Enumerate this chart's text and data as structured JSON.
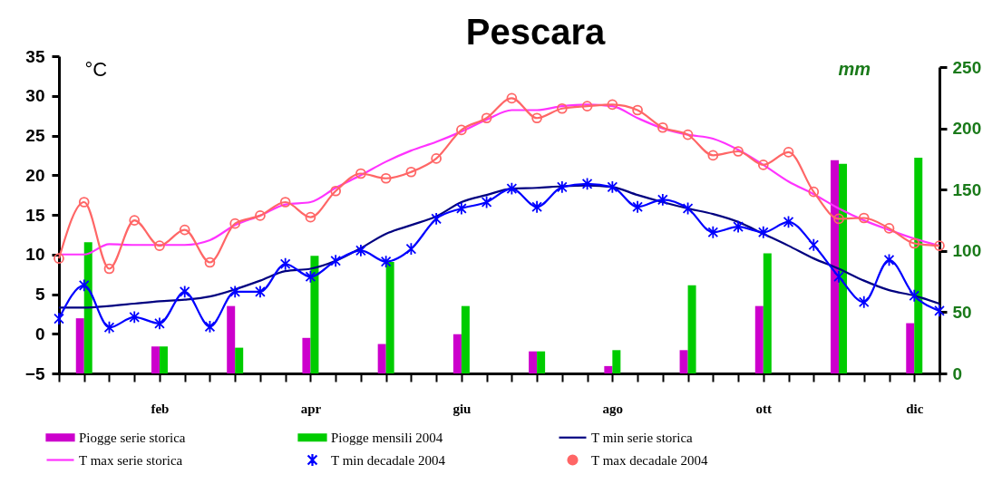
{
  "chart_data": {
    "type": "line",
    "title": "Pescara",
    "ylabel": "°C",
    "y2label": "mm",
    "categories": [
      null,
      null,
      null,
      null,
      "feb",
      null,
      null,
      null,
      null,
      null,
      "apr",
      null,
      null,
      null,
      null,
      null,
      "giu",
      null,
      null,
      null,
      null,
      null,
      "ago",
      null,
      null,
      null,
      null,
      null,
      "ott",
      null,
      null,
      null,
      null,
      null,
      "dic",
      null
    ],
    "ylim": [
      -5,
      35
    ],
    "yticks": [
      -5,
      0,
      5,
      10,
      15,
      20,
      25,
      30,
      35
    ],
    "y2lim": [
      0,
      250
    ],
    "y2ticks": [
      0,
      50,
      100,
      150,
      200,
      250
    ],
    "legend": "bottom",
    "series": [
      {
        "name": "Piogge serie storica",
        "type": "bar",
        "axis": "y2",
        "color": "#cc00cc",
        "values": [
          null,
          45,
          null,
          null,
          22,
          null,
          null,
          55,
          null,
          null,
          29,
          null,
          null,
          24,
          null,
          null,
          32,
          null,
          null,
          18,
          null,
          null,
          6,
          null,
          null,
          19,
          null,
          null,
          55,
          null,
          null,
          174,
          null,
          null,
          41,
          null
        ]
      },
      {
        "name": "Piogge mensili 2004",
        "type": "bar",
        "axis": "y2",
        "color": "#00cc00",
        "values": [
          null,
          107,
          null,
          null,
          22,
          null,
          null,
          21,
          null,
          null,
          96,
          null,
          null,
          91,
          null,
          null,
          55,
          null,
          null,
          18,
          null,
          null,
          19,
          null,
          null,
          72,
          null,
          null,
          98,
          null,
          null,
          171,
          null,
          null,
          176,
          null
        ]
      },
      {
        "name": "T min serie storica",
        "type": "line",
        "color": "#000080",
        "values": [
          3.3,
          3.3,
          3.5,
          3.8,
          4.1,
          4.3,
          4.7,
          5.6,
          6.7,
          7.9,
          8.2,
          9.2,
          10.8,
          12.6,
          13.7,
          14.8,
          16.6,
          17.5,
          18.3,
          18.4,
          18.6,
          18.7,
          18.5,
          17.5,
          16.6,
          15.8,
          15.1,
          14.1,
          12.6,
          11.1,
          9.5,
          8.2,
          6.7,
          5.5,
          4.8,
          3.8
        ]
      },
      {
        "name": "T max serie storica",
        "type": "line",
        "color": "#ff33ff",
        "values": [
          10,
          10,
          11.3,
          11.2,
          11.2,
          11.2,
          11.8,
          13.7,
          14.9,
          16.3,
          16.6,
          18.4,
          20.0,
          21.7,
          23.1,
          24.2,
          25.5,
          27.0,
          28.2,
          28.2,
          28.7,
          28.9,
          28.7,
          27.2,
          25.9,
          25.1,
          24.6,
          23.2,
          21.3,
          19.2,
          17.6,
          15.8,
          14.3,
          13.1,
          12.0,
          11.1
        ]
      },
      {
        "name": "T min decadale 2004",
        "type": "line",
        "marker": "cross",
        "color": "#0000ff",
        "values": [
          1.9,
          6.1,
          0.8,
          2.1,
          1.3,
          5.3,
          0.9,
          5.3,
          5.3,
          8.8,
          7.2,
          9.2,
          10.5,
          9.1,
          10.7,
          14.5,
          15.8,
          16.6,
          18.3,
          16.0,
          18.5,
          18.9,
          18.5,
          16.0,
          16.9,
          15.8,
          12.8,
          13.5,
          12.8,
          14.1,
          11.2,
          7.2,
          4.0,
          9.3,
          4.8,
          2.9
        ]
      },
      {
        "name": "T max decadale 2004",
        "type": "line",
        "marker": "circle",
        "color": "#ff6666",
        "values": [
          9.5,
          16.6,
          8.2,
          14.3,
          11.1,
          13.1,
          9.0,
          13.9,
          14.9,
          16.6,
          14.7,
          18.0,
          20.2,
          19.6,
          20.4,
          22.1,
          25.7,
          27.2,
          29.7,
          27.2,
          28.4,
          28.7,
          28.9,
          28.2,
          26.0,
          25.1,
          22.5,
          23.0,
          21.3,
          22.9,
          17.9,
          14.5,
          14.6,
          13.3,
          11.4,
          11.1
        ]
      }
    ]
  }
}
